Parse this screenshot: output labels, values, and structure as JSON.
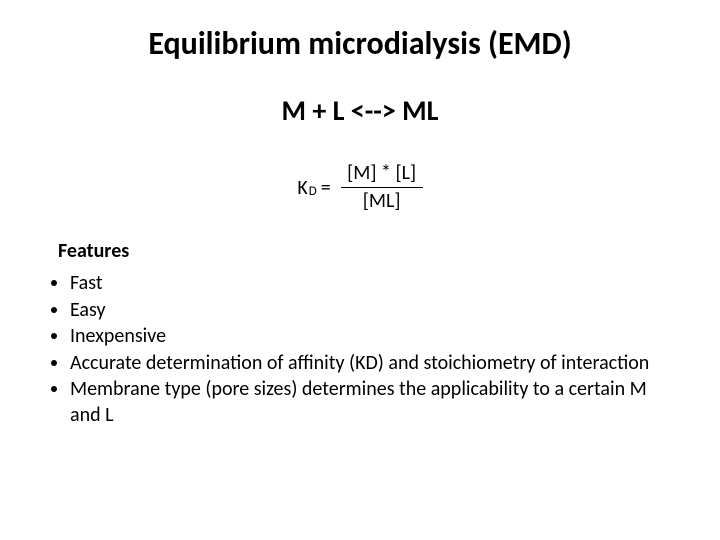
{
  "title": "Equilibrium microdialysis (EMD)",
  "mainEquation": "M + L  <--> ML",
  "kd": {
    "symbol": "K",
    "subscript": "D",
    "equals": "=",
    "numerator": "[M] * [L]",
    "denominator": "[ML]"
  },
  "featuresLabel": "Features",
  "features": [
    "Fast",
    "Easy",
    "Inexpensive",
    "Accurate determination of affinity (KD) and stoichiometry of interaction",
    "Membrane type (pore sizes) determines the applicability to a certain M and L"
  ],
  "colors": {
    "background": "#ffffff",
    "text": "#000000"
  }
}
